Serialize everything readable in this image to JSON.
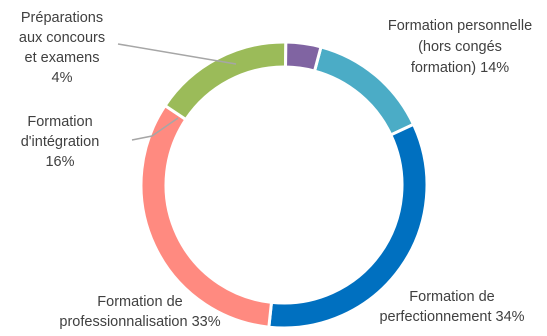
{
  "chart_data": {
    "type": "donut",
    "title": "",
    "series": [
      {
        "name": "",
        "values": [
          14,
          34,
          33,
          16,
          4
        ]
      }
    ],
    "categories": [
      "Formation personnelle (hors congés formation)",
      "Formation de perfectionnement",
      "Formation de professionnalisation",
      "Formation d'intégration",
      "Préparations aux concours et examens"
    ],
    "slices": [
      {
        "label": "Formation personnelle (hors congés formation)",
        "value": 14,
        "color": "#4bacc6",
        "label_lines": [
          "Formation personnelle",
          "(hors congés",
          "formation) 14%"
        ]
      },
      {
        "label": "Formation de perfectionnement",
        "value": 34,
        "color": "#0070c0",
        "label_lines": [
          "Formation de",
          "perfectionnement 34%"
        ]
      },
      {
        "label": "Formation de professionnalisation",
        "value": 33,
        "color": "#ff8a80",
        "label_lines": [
          "Formation de",
          "professionnalisation 33%"
        ]
      },
      {
        "label": "Formation d'intégration",
        "value": 16,
        "color": "#9bbb59",
        "label_lines": [
          "Formation",
          "d'intégration",
          "16%"
        ]
      },
      {
        "label": "Préparations aux concours et examens",
        "value": 4,
        "color": "#8064a2",
        "label_lines": [
          "Préparations",
          "aux concours",
          "et examens",
          "4%"
        ]
      }
    ],
    "start_angle_deg": 15,
    "legend": "none"
  }
}
